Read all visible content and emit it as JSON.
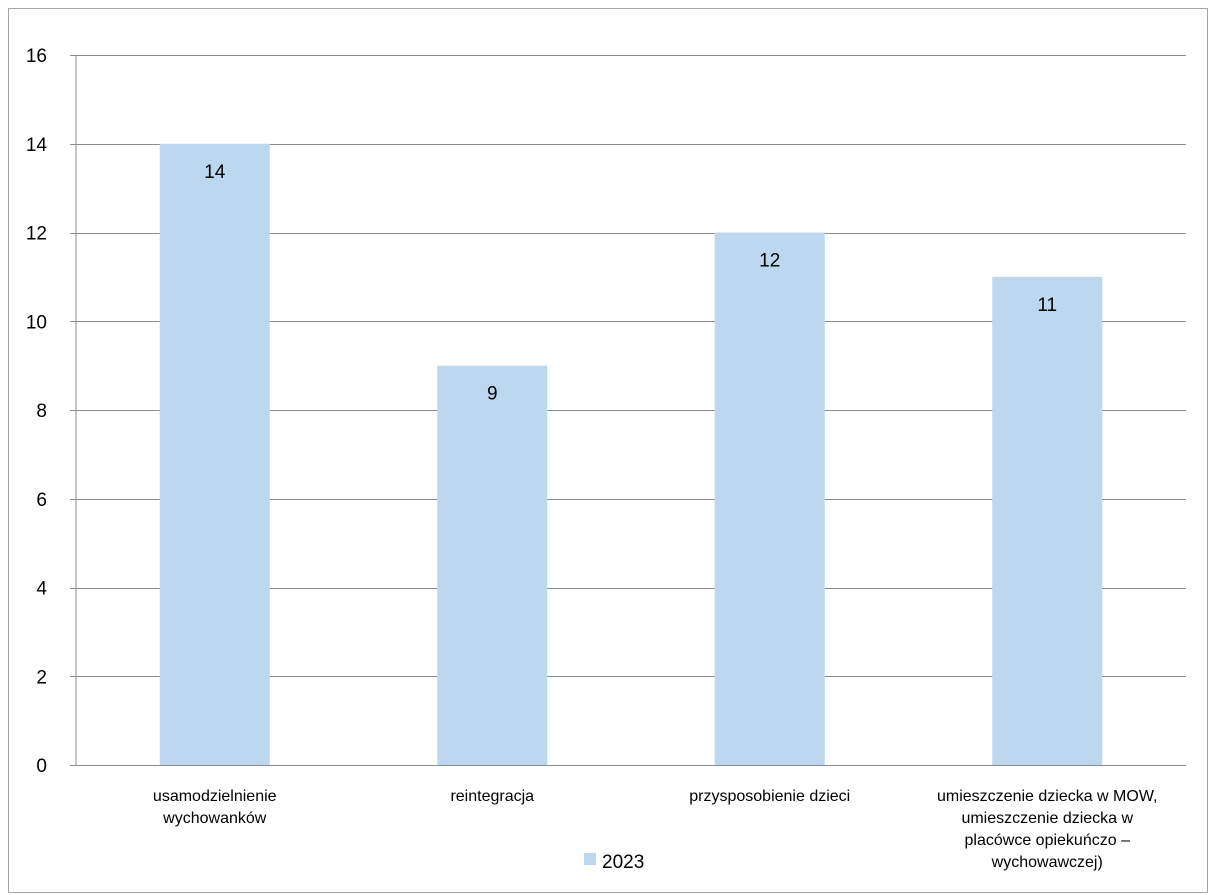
{
  "chart_data": {
    "type": "bar",
    "categories": [
      [
        "usamodzielnienie",
        "wychowanków"
      ],
      [
        "reintegracja"
      ],
      [
        "przysposobienie dzieci"
      ],
      [
        "umieszczenie dziecka w MOW,",
        "umieszczenie dziecka w",
        "placówce opiekuńczo –",
        "wychowawczej)"
      ]
    ],
    "series": [
      {
        "name": "2023",
        "values": [
          14,
          9,
          12,
          11
        ],
        "color": "#bdd7ee"
      }
    ],
    "ylim": [
      0,
      16
    ],
    "yticks": [
      0,
      2,
      4,
      6,
      8,
      10,
      12,
      14,
      16
    ],
    "grid": true,
    "gridline_color": "#8c8c8c",
    "legend_position": "bottom",
    "title": "",
    "xlabel": "",
    "ylabel": ""
  }
}
